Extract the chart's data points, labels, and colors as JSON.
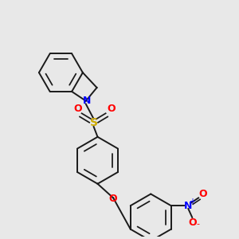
{
  "bg_color": "#e8e8e8",
  "bond_color": "#1a1a1a",
  "N_color": "#0000ff",
  "S_color": "#ccaa00",
  "O_color": "#ff0000",
  "N_label": "N",
  "S_label": "S",
  "O_label": "O",
  "plus_label": "+",
  "minus_label": "-",
  "figsize": [
    3.0,
    3.0
  ],
  "dpi": 100,
  "ring_r": 28
}
